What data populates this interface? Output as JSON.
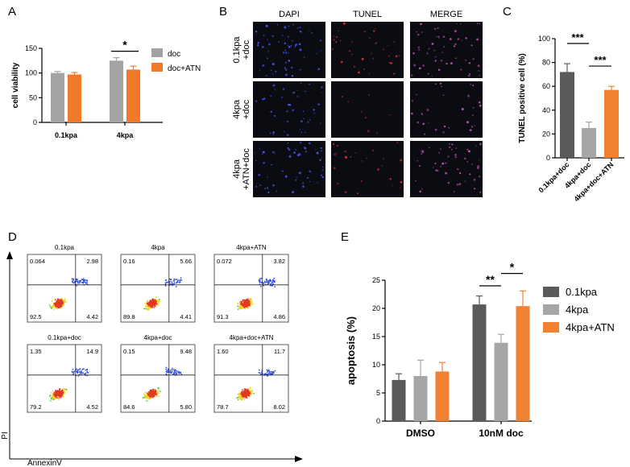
{
  "colors": {
    "dark_gray": "#5a5a5a",
    "gray": "#a6a6a8",
    "orange": "#f08232",
    "panel_a_gray": "#a3a3a3",
    "panel_a_orange": "#f07a2a",
    "micro_bg": "#0b0b12",
    "dapi": "#4a5cff",
    "tunel": "#e0303a",
    "merge": "#d050c8"
  },
  "chart_data": [
    {
      "panel": "A",
      "type": "bar",
      "ylabel": "cell viability",
      "xlabel": "",
      "ylim": [
        0,
        150
      ],
      "yticks": [
        0,
        50,
        100,
        150
      ],
      "categories": [
        "0.1kpa",
        "4kpa"
      ],
      "series": [
        {
          "name": "doc",
          "values": [
            100,
            125
          ],
          "errors": [
            3,
            6
          ]
        },
        {
          "name": "doc+ATN",
          "values": [
            97,
            107
          ],
          "errors": [
            4,
            7
          ]
        }
      ],
      "significance": [
        {
          "label": "*",
          "category": "4kpa"
        }
      ],
      "legend": "top-right"
    },
    {
      "panel": "B",
      "type": "image_grid",
      "columns": [
        "DAPI",
        "TUNEL",
        "MERGE"
      ],
      "rows": [
        [
          "0.1kpa",
          "+doc"
        ],
        [
          "4kpa",
          "+doc"
        ],
        [
          "4kpa",
          "+ATN+doc"
        ]
      ]
    },
    {
      "panel": "C",
      "type": "bar",
      "ylabel": "TUNEL positive cell (%)",
      "xlabel": "",
      "ylim": [
        0,
        100
      ],
      "yticks": [
        0,
        20,
        40,
        60,
        80,
        100
      ],
      "categories": [
        "0.1kpa+doc",
        "4kpa+doc",
        "4kpa+doc+ATN"
      ],
      "values": [
        72,
        25,
        57
      ],
      "errors": [
        7,
        5,
        3
      ],
      "significance": [
        {
          "label": "***",
          "from": "0.1kpa+doc",
          "to": "4kpa+doc"
        },
        {
          "label": "***",
          "from": "4kpa+doc",
          "to": "4kpa+doc+ATN"
        }
      ]
    },
    {
      "panel": "D",
      "type": "scatter",
      "xlabel": "AnnexinV",
      "ylabel": "PI",
      "plots": [
        {
          "title": "0.1kpa",
          "quadrants": {
            "ul": "0.064",
            "ur": "2.98",
            "ll": "92.5",
            "lr": "4.42"
          }
        },
        {
          "title": "4kpa",
          "quadrants": {
            "ul": "0.16",
            "ur": "5.66",
            "ll": "89.8",
            "lr": "4.41"
          }
        },
        {
          "title": "4kpa+ATN",
          "quadrants": {
            "ul": "0.072",
            "ur": "3.82",
            "ll": "91.3",
            "lr": "4.86"
          }
        },
        {
          "title": "0.1kpa+doc",
          "quadrants": {
            "ul": "1.35",
            "ur": "14.9",
            "ll": "79.2",
            "lr": "4.52"
          }
        },
        {
          "title": "4kpa+doc",
          "quadrants": {
            "ul": "0.15",
            "ur": "9.48",
            "ll": "84.6",
            "lr": "5.80"
          }
        },
        {
          "title": "4kpa+doc+ATN",
          "quadrants": {
            "ul": "1.60",
            "ur": "11.7",
            "ll": "78.7",
            "lr": "8.02"
          }
        }
      ]
    },
    {
      "panel": "E",
      "type": "bar",
      "ylabel": "apoptosis (%)",
      "xlabel": "",
      "ylim": [
        0,
        25
      ],
      "yticks": [
        0,
        5,
        10,
        15,
        20,
        25
      ],
      "categories": [
        "DMSO",
        "10nM doc"
      ],
      "series": [
        {
          "name": "0.1kpa",
          "values": [
            7.3,
            20.7
          ],
          "errors": [
            1.1,
            1.5
          ]
        },
        {
          "name": "4kpa",
          "values": [
            8.0,
            13.9
          ],
          "errors": [
            2.8,
            1.5
          ]
        },
        {
          "name": "4kpa+ATN",
          "values": [
            8.8,
            20.4
          ],
          "errors": [
            1.6,
            2.7
          ]
        }
      ],
      "significance": [
        {
          "label": "**",
          "from": "0.1kpa",
          "to": "4kpa",
          "category": "10nM doc"
        },
        {
          "label": "*",
          "from": "4kpa",
          "to": "4kpa+ATN",
          "category": "10nM doc"
        }
      ],
      "legend": "right"
    }
  ],
  "panel_labels": [
    "A",
    "B",
    "C",
    "D",
    "E"
  ]
}
